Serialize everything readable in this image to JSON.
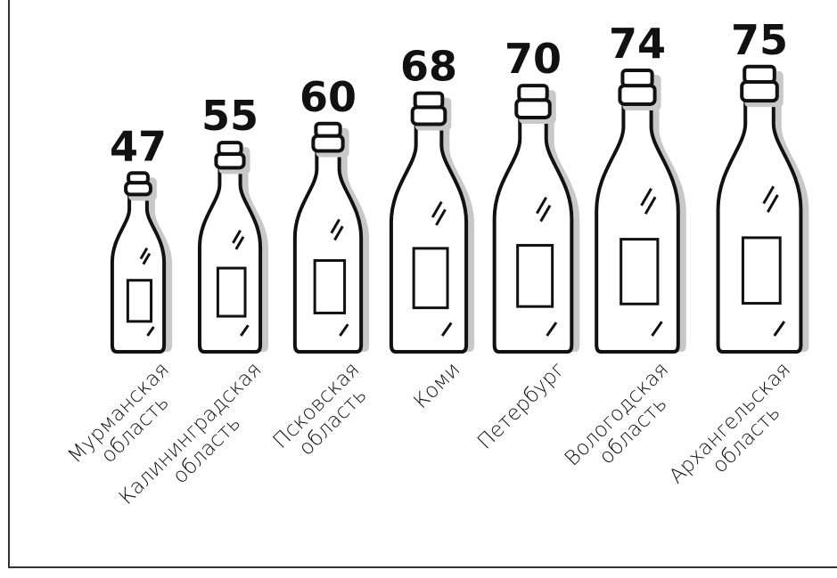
{
  "chart_data": {
    "type": "bottles",
    "categories": [
      "Мурманская\nобласть",
      "Калининградская\nобласть",
      "Псковская\nобласть",
      "Коми",
      "Петербург",
      "Вологодская\nобласть",
      "Архангельская\nобласть"
    ],
    "values": [
      47,
      55,
      60,
      68,
      70,
      74,
      75
    ]
  }
}
